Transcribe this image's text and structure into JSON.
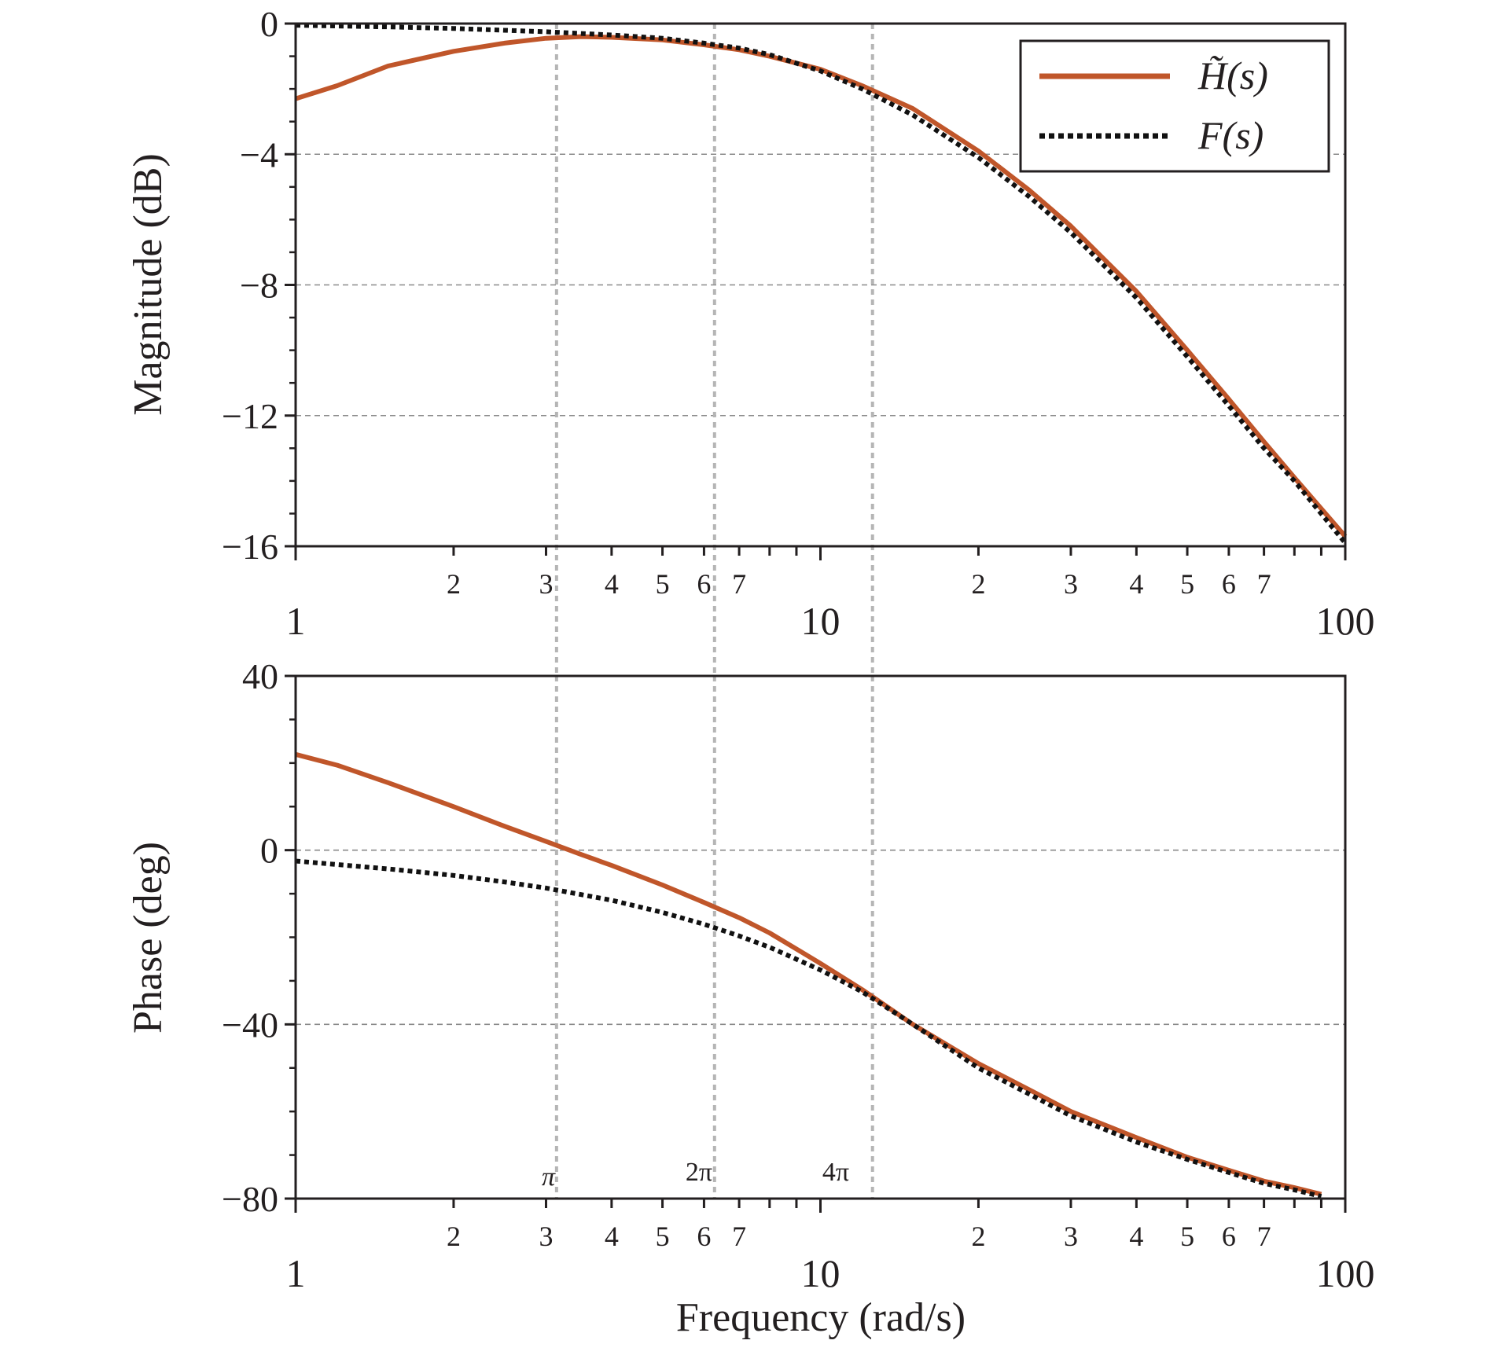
{
  "chart_data": [
    {
      "type": "line",
      "panel": "magnitude",
      "ylabel": "Magnitude (dB)",
      "xlabel": "",
      "xscale": "log",
      "xlim": [
        1,
        100
      ],
      "ylim": [
        -16,
        0
      ],
      "yticks": [
        0,
        -4,
        -8,
        -12,
        -16
      ],
      "ytick_labels": [
        "0",
        "−4",
        "−8",
        "−12",
        "−16"
      ],
      "xtick_major_labels": [
        "1",
        "10",
        "100"
      ],
      "xtick_minor_labels": [
        "2",
        "3",
        "4",
        "5",
        "6",
        "7",
        "2",
        "3",
        "4",
        "5",
        "6",
        "7"
      ],
      "grid": "horizontal dashed at major y ticks",
      "legend": {
        "position": "top-right",
        "entries": [
          {
            "label": "H̃(s)",
            "style": "solid",
            "color": "#c0562a"
          },
          {
            "label": "F(s)",
            "style": "dotted",
            "color": "#111111"
          }
        ]
      },
      "series": [
        {
          "name": "H̃(s)",
          "color": "#c0562a",
          "style": "solid",
          "x": [
            1,
            1.2,
            1.5,
            2,
            2.5,
            3,
            3.5,
            4,
            5,
            6,
            7,
            8,
            10,
            12,
            15,
            20,
            25,
            30,
            40,
            50,
            60,
            70,
            80,
            100
          ],
          "y": [
            -2.3,
            -1.9,
            -1.3,
            -0.85,
            -0.6,
            -0.45,
            -0.4,
            -0.42,
            -0.5,
            -0.65,
            -0.8,
            -1.0,
            -1.4,
            -1.9,
            -2.6,
            -3.9,
            -5.1,
            -6.2,
            -8.2,
            -10.0,
            -11.5,
            -12.8,
            -13.9,
            -15.7
          ]
        },
        {
          "name": "F(s)",
          "color": "#111111",
          "style": "dotted",
          "x": [
            1,
            1.5,
            2,
            3,
            4,
            5,
            6,
            7,
            8,
            10,
            12,
            15,
            20,
            25,
            30,
            40,
            50,
            60,
            70,
            80,
            100
          ],
          "y": [
            -0.05,
            -0.1,
            -0.15,
            -0.25,
            -0.35,
            -0.45,
            -0.6,
            -0.75,
            -0.95,
            -1.45,
            -2.0,
            -2.8,
            -4.1,
            -5.3,
            -6.4,
            -8.4,
            -10.2,
            -11.7,
            -13.0,
            -14.0,
            -15.9
          ]
        }
      ],
      "vlines": [
        3.1416,
        6.2832,
        12.566
      ]
    },
    {
      "type": "line",
      "panel": "phase",
      "ylabel": "Phase (deg)",
      "xlabel": "Frequency (rad/s)",
      "xscale": "log",
      "xlim": [
        1,
        100
      ],
      "ylim": [
        -80,
        40
      ],
      "yticks": [
        40,
        0,
        -40,
        -80
      ],
      "ytick_labels": [
        "40",
        "0",
        "−40",
        "−80"
      ],
      "xtick_major_labels": [
        "1",
        "10",
        "100"
      ],
      "xtick_minor_labels": [
        "2",
        "3",
        "4",
        "5",
        "6",
        "7",
        "2",
        "3",
        "4",
        "5",
        "6",
        "7"
      ],
      "grid": "horizontal dashed at major y ticks",
      "annotations": [
        "π",
        "2π",
        "4π"
      ],
      "series": [
        {
          "name": "H̃(s)",
          "color": "#c0562a",
          "style": "solid",
          "x": [
            1,
            1.2,
            1.5,
            2,
            2.5,
            3,
            3.5,
            4,
            5,
            6,
            7,
            8,
            10,
            12,
            15,
            20,
            25,
            30,
            40,
            50,
            60,
            70,
            80,
            90
          ],
          "y": [
            22,
            19.5,
            15.5,
            10,
            5.5,
            2,
            -1,
            -3.5,
            -8,
            -12,
            -15.5,
            -19,
            -26,
            -32,
            -40,
            -49,
            -55,
            -60,
            -66,
            -70.5,
            -73.5,
            -76,
            -77.5,
            -79
          ]
        },
        {
          "name": "F(s)",
          "color": "#111111",
          "style": "dotted",
          "x": [
            1,
            1.2,
            1.5,
            2,
            2.5,
            3,
            3.5,
            4,
            5,
            6,
            7,
            8,
            10,
            12,
            15,
            20,
            25,
            30,
            40,
            50,
            60,
            70,
            80,
            90
          ],
          "y": [
            -2.5,
            -3.3,
            -4.3,
            -5.8,
            -7.3,
            -8.7,
            -10.2,
            -11.5,
            -14.3,
            -17,
            -19.7,
            -22.3,
            -27.5,
            -32.5,
            -40,
            -50,
            -56,
            -61,
            -67,
            -71,
            -74,
            -76.5,
            -78,
            -79.5
          ]
        }
      ],
      "vlines": [
        3.1416,
        6.2832,
        12.566
      ]
    }
  ]
}
